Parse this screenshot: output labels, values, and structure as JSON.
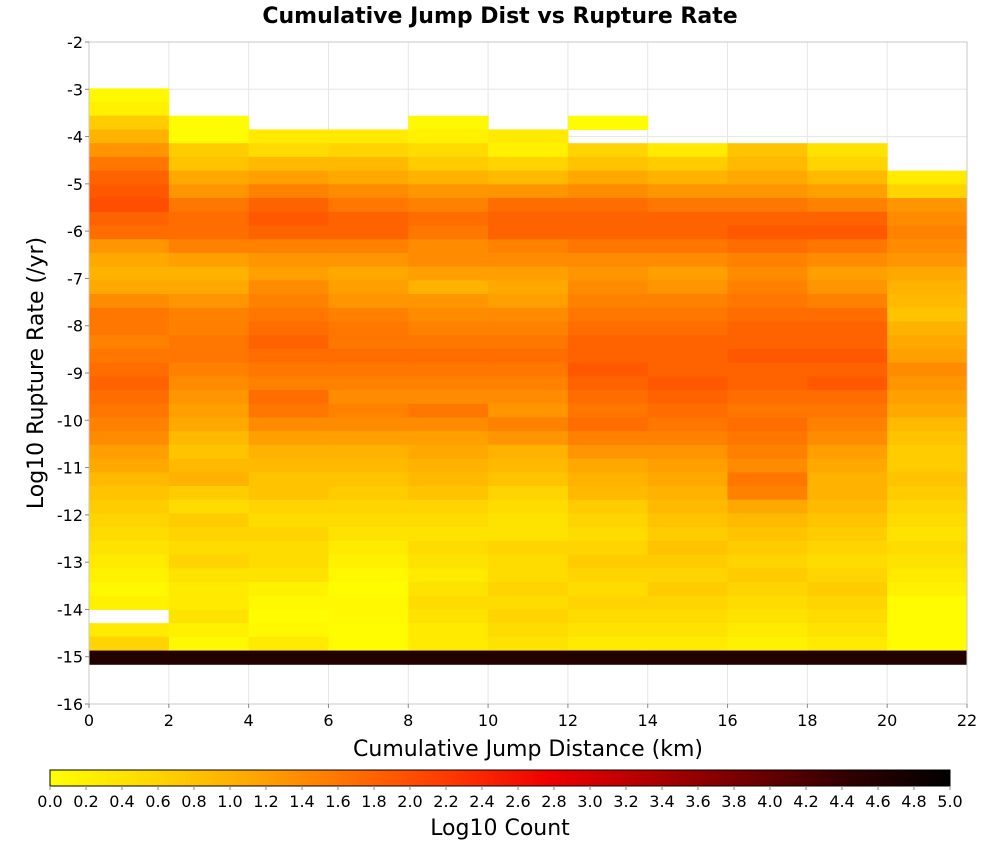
{
  "chart_data": {
    "type": "heatmap",
    "title": "Cumulative Jump Dist vs Rupture Rate",
    "xlabel": "Cumulative Jump Distance (km)",
    "ylabel": "Log10 Rupture Rate (/yr)",
    "xlim": [
      0,
      22
    ],
    "ylim": [
      -16,
      -2
    ],
    "x_ticks": [
      "0",
      "2",
      "4",
      "6",
      "8",
      "10",
      "12",
      "14",
      "16",
      "18",
      "20",
      "22"
    ],
    "y_ticks": [
      "-2",
      "-3",
      "-4",
      "-5",
      "-6",
      "-7",
      "-8",
      "-9",
      "-10",
      "-11",
      "-12",
      "-13",
      "-14",
      "-15",
      "-16"
    ],
    "x_bin_width": 2,
    "y_bin_width": 0.29,
    "x_bin_starts": [
      0,
      2,
      4,
      6,
      8,
      10,
      12,
      14,
      16,
      18,
      20
    ],
    "y_bin_top": -2.98,
    "grid": true,
    "colorbar": {
      "label": "Log10 Count",
      "min": 0,
      "max": 5,
      "ticks": [
        "0.0",
        "0.2",
        "0.4",
        "0.6",
        "0.8",
        "1.0",
        "1.2",
        "1.4",
        "1.6",
        "1.8",
        "2.0",
        "2.2",
        "2.4",
        "2.6",
        "2.8",
        "3.0",
        "3.2",
        "3.4",
        "3.6",
        "3.8",
        "4.0",
        "4.2",
        "4.4",
        "4.6",
        "4.8",
        "5.0"
      ],
      "colors": [
        "#ffff00",
        "#ffd800",
        "#ffa800",
        "#ff7000",
        "#ff3800",
        "#ee0000",
        "#b00000",
        "#700000",
        "#300000",
        "#000000"
      ]
    },
    "columns": [
      {
        "x": 0,
        "values": [
          0.1,
          0.2,
          0.7,
          1.0,
          1.3,
          1.6,
          1.8,
          1.9,
          2.0,
          1.8,
          1.7,
          1.3,
          1.1,
          1.0,
          1.1,
          1.4,
          1.6,
          1.6,
          1.5,
          1.6,
          1.7,
          1.8,
          1.7,
          1.6,
          1.5,
          1.4,
          1.2,
          1.1,
          0.9,
          0.8,
          0.7,
          0.6,
          0.5,
          0.4,
          0.3,
          0.2,
          0.1,
          0.2,
          null,
          0.3,
          0.6,
          4.6
        ]
      },
      {
        "x": 2,
        "values": [
          null,
          null,
          0.05,
          0.05,
          0.7,
          0.8,
          1.1,
          1.3,
          1.6,
          1.7,
          1.7,
          1.5,
          1.2,
          1.0,
          1.1,
          1.3,
          1.5,
          1.5,
          1.6,
          1.6,
          1.5,
          1.4,
          1.3,
          1.2,
          1.1,
          0.9,
          0.8,
          0.9,
          1.0,
          0.7,
          0.5,
          0.7,
          0.6,
          0.5,
          0.6,
          0.4,
          0.3,
          0.3,
          0.4,
          0.2,
          0.1,
          4.6
        ]
      },
      {
        "x": 4,
        "values": [
          null,
          null,
          null,
          0.3,
          0.5,
          0.9,
          1.2,
          1.5,
          1.8,
          1.9,
          1.8,
          1.5,
          1.3,
          1.2,
          1.4,
          1.5,
          1.6,
          1.7,
          1.8,
          1.7,
          1.6,
          1.5,
          1.7,
          1.6,
          1.4,
          1.2,
          1.0,
          0.9,
          0.8,
          0.8,
          0.6,
          0.5,
          0.6,
          0.5,
          0.5,
          0.4,
          0.2,
          0.1,
          0.05,
          0.1,
          0.3,
          4.6
        ]
      },
      {
        "x": 6,
        "values": [
          null,
          null,
          null,
          0.3,
          0.6,
          0.9,
          1.1,
          1.4,
          1.6,
          1.8,
          1.8,
          1.5,
          1.3,
          1.1,
          1.2,
          1.3,
          1.5,
          1.6,
          1.6,
          1.7,
          1.6,
          1.5,
          1.4,
          1.5,
          1.4,
          1.2,
          1.0,
          0.9,
          0.8,
          0.7,
          0.6,
          0.5,
          0.4,
          0.3,
          0.2,
          0.1,
          0.05,
          0.1,
          0.1,
          0.05,
          0.05,
          4.6
        ]
      },
      {
        "x": 8,
        "values": [
          null,
          null,
          0.1,
          0.2,
          0.5,
          0.7,
          1.0,
          1.3,
          1.5,
          1.7,
          1.6,
          1.4,
          1.4,
          1.2,
          1.0,
          1.3,
          1.4,
          1.5,
          1.6,
          1.7,
          1.6,
          1.5,
          1.4,
          1.6,
          1.4,
          1.2,
          1.1,
          1.0,
          0.9,
          0.8,
          0.6,
          0.5,
          0.4,
          0.5,
          0.4,
          0.3,
          0.4,
          0.5,
          0.4,
          0.3,
          0.3,
          4.6
        ]
      },
      {
        "x": 10,
        "values": [
          null,
          null,
          null,
          0.3,
          0.2,
          0.6,
          0.9,
          1.3,
          1.7,
          1.8,
          1.8,
          1.5,
          1.4,
          1.2,
          1.1,
          1.2,
          1.4,
          1.5,
          1.6,
          1.7,
          1.6,
          1.5,
          1.4,
          1.3,
          1.5,
          1.3,
          1.0,
          0.9,
          0.8,
          0.6,
          0.5,
          0.4,
          0.4,
          0.6,
          0.5,
          0.5,
          0.6,
          0.5,
          0.6,
          0.5,
          0.4,
          4.6
        ]
      },
      {
        "x": 12,
        "values": [
          null,
          null,
          0.05,
          null,
          0.6,
          0.8,
          1.1,
          1.4,
          1.7,
          1.8,
          1.8,
          1.6,
          1.4,
          1.3,
          1.4,
          1.5,
          1.6,
          1.7,
          1.8,
          1.8,
          1.9,
          1.8,
          1.7,
          1.6,
          1.7,
          1.5,
          1.3,
          1.1,
          1.0,
          0.9,
          0.7,
          0.6,
          0.5,
          0.6,
          0.7,
          0.6,
          0.5,
          0.6,
          0.5,
          0.4,
          0.3,
          4.6
        ]
      },
      {
        "x": 14,
        "values": [
          null,
          null,
          null,
          null,
          0.3,
          0.7,
          1.0,
          1.3,
          1.6,
          1.8,
          1.8,
          1.6,
          1.4,
          1.2,
          1.3,
          1.5,
          1.6,
          1.7,
          1.8,
          1.8,
          1.8,
          1.9,
          1.8,
          1.7,
          1.6,
          1.5,
          1.3,
          1.2,
          1.1,
          1.0,
          0.9,
          0.8,
          0.7,
          0.8,
          0.7,
          0.6,
          0.7,
          0.6,
          0.5,
          0.4,
          0.3,
          4.6
        ]
      },
      {
        "x": 16,
        "values": [
          null,
          null,
          null,
          null,
          0.8,
          0.9,
          1.1,
          1.3,
          1.6,
          1.8,
          1.9,
          1.7,
          1.5,
          1.4,
          1.5,
          1.6,
          1.7,
          1.8,
          1.8,
          1.9,
          1.8,
          1.8,
          1.7,
          1.6,
          1.7,
          1.6,
          1.5,
          1.4,
          1.6,
          1.5,
          1.1,
          0.9,
          0.8,
          0.7,
          0.6,
          0.7,
          0.6,
          0.5,
          0.4,
          0.3,
          0.2,
          4.6
        ]
      },
      {
        "x": 18,
        "values": [
          null,
          null,
          null,
          null,
          0.4,
          0.6,
          0.9,
          1.2,
          1.5,
          1.8,
          1.9,
          1.6,
          1.4,
          1.2,
          1.3,
          1.5,
          1.7,
          1.8,
          1.8,
          1.9,
          1.8,
          1.9,
          1.7,
          1.6,
          1.5,
          1.4,
          1.2,
          1.1,
          1.0,
          1.0,
          0.9,
          0.8,
          0.7,
          0.6,
          0.5,
          0.6,
          0.7,
          0.6,
          0.5,
          0.4,
          0.3,
          4.6
        ]
      },
      {
        "x": 20,
        "values": [
          null,
          null,
          null,
          null,
          null,
          null,
          0.3,
          0.6,
          1.3,
          1.4,
          1.5,
          1.4,
          1.3,
          1.1,
          1.0,
          0.9,
          0.8,
          1.0,
          1.1,
          1.2,
          1.4,
          1.3,
          1.2,
          1.1,
          0.9,
          0.8,
          0.7,
          0.7,
          0.8,
          0.7,
          0.6,
          0.5,
          0.4,
          0.5,
          0.4,
          0.3,
          0.2,
          0.05,
          0.05,
          0.05,
          0.05,
          4.6
        ]
      }
    ]
  }
}
